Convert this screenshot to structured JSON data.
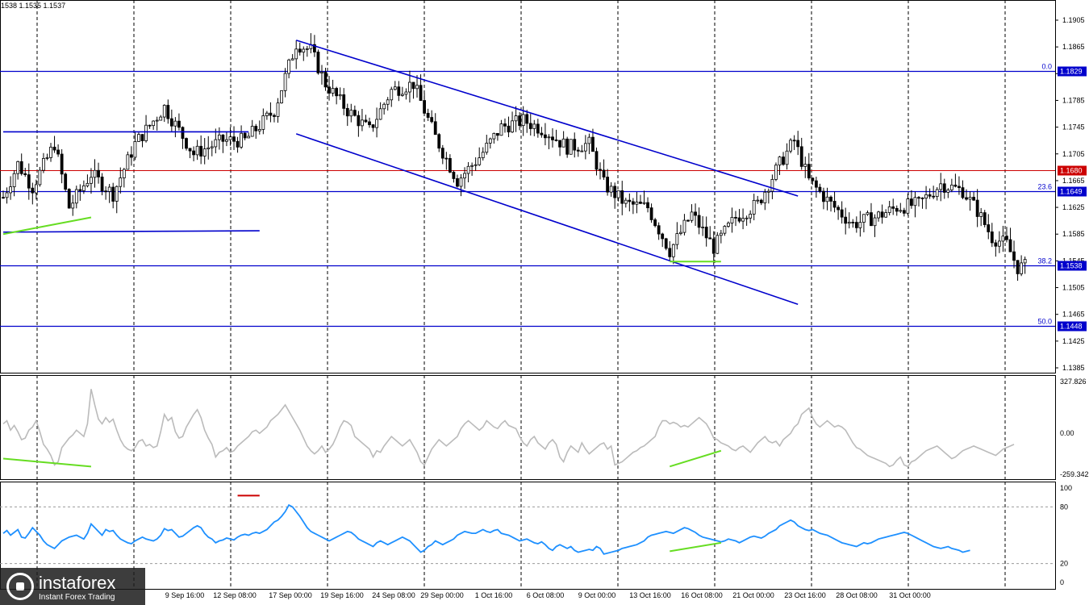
{
  "header": {
    "ohlc_text": "1538 1.1535 1.1537"
  },
  "logo": {
    "name": "instaforex",
    "tagline": "Instant Forex Trading"
  },
  "colors": {
    "candles": "#000000",
    "level_lines": "#0000cc",
    "red_level": "#cc0000",
    "channel": "#0000cc",
    "divergence": "#66dd22",
    "cci": "#bbbbbb",
    "rsi": "#1e90ff",
    "grid": "#000000"
  },
  "chart_data": [
    {
      "type": "candlestick",
      "panel": "price",
      "ylim": [
        1.1385,
        1.1925
      ],
      "y_ticks": [
        "1.1905",
        "1.1865",
        "1.1825",
        "1.1785",
        "1.1745",
        "1.1705",
        "1.1665",
        "1.1625",
        "1.1585",
        "1.1545",
        "1.1505",
        "1.1465",
        "1.1425",
        "1.1385"
      ],
      "x_ticks": [
        "9 Sep 16:00",
        "12 Sep 08:00",
        "17 Sep 00:00",
        "19 Sep 16:00",
        "24 Sep 08:00",
        "29 Sep 00:00",
        "1 Oct 16:00",
        "6 Oct 08:00",
        "9 Oct 00:00",
        "13 Oct 16:00",
        "16 Oct 08:00",
        "21 Oct 00:00",
        "23 Oct 16:00",
        "28 Oct 08:00",
        "31 Oct 00:00"
      ],
      "path_points": [
        {
          "i": 0,
          "price": 1.164
        },
        {
          "i": 4,
          "price": 1.169
        },
        {
          "i": 8,
          "price": 1.1655
        },
        {
          "i": 14,
          "price": 1.172
        },
        {
          "i": 18,
          "price": 1.1625
        },
        {
          "i": 24,
          "price": 1.1675
        },
        {
          "i": 30,
          "price": 1.1645
        },
        {
          "i": 36,
          "price": 1.172
        },
        {
          "i": 44,
          "price": 1.1775
        },
        {
          "i": 52,
          "price": 1.1705
        },
        {
          "i": 60,
          "price": 1.1725
        },
        {
          "i": 66,
          "price": 1.1725
        },
        {
          "i": 74,
          "price": 1.177
        },
        {
          "i": 80,
          "price": 1.187
        },
        {
          "i": 84,
          "price": 1.186
        },
        {
          "i": 88,
          "price": 1.181
        },
        {
          "i": 94,
          "price": 1.177
        },
        {
          "i": 100,
          "price": 1.174
        },
        {
          "i": 106,
          "price": 1.18
        },
        {
          "i": 112,
          "price": 1.181
        },
        {
          "i": 118,
          "price": 1.173
        },
        {
          "i": 124,
          "price": 1.1665
        },
        {
          "i": 130,
          "price": 1.17
        },
        {
          "i": 136,
          "price": 1.1745
        },
        {
          "i": 142,
          "price": 1.1755
        },
        {
          "i": 148,
          "price": 1.174
        },
        {
          "i": 154,
          "price": 1.1715
        },
        {
          "i": 160,
          "price": 1.172
        },
        {
          "i": 164,
          "price": 1.166
        },
        {
          "i": 170,
          "price": 1.163
        },
        {
          "i": 176,
          "price": 1.1625
        },
        {
          "i": 182,
          "price": 1.156
        },
        {
          "i": 188,
          "price": 1.1615
        },
        {
          "i": 194,
          "price": 1.1565
        },
        {
          "i": 200,
          "price": 1.161
        },
        {
          "i": 206,
          "price": 1.163
        },
        {
          "i": 212,
          "price": 1.169
        },
        {
          "i": 216,
          "price": 1.1725
        },
        {
          "i": 220,
          "price": 1.1665
        },
        {
          "i": 226,
          "price": 1.163
        },
        {
          "i": 232,
          "price": 1.16
        },
        {
          "i": 238,
          "price": 1.161
        },
        {
          "i": 244,
          "price": 1.1625
        },
        {
          "i": 250,
          "price": 1.163
        },
        {
          "i": 256,
          "price": 1.166
        },
        {
          "i": 262,
          "price": 1.165
        },
        {
          "i": 266,
          "price": 1.162
        },
        {
          "i": 270,
          "price": 1.158
        },
        {
          "i": 274,
          "price": 1.157
        },
        {
          "i": 277,
          "price": 1.1535
        },
        {
          "i": 279,
          "price": 1.1537
        }
      ],
      "horizontal_levels": [
        {
          "price": 1.1829,
          "tag": "1.1829",
          "fib": "0.0",
          "color": "blue"
        },
        {
          "price": 1.168,
          "tag": "1.1680",
          "fib": "",
          "color": "red"
        },
        {
          "price": 1.1649,
          "tag": "1.1649",
          "fib": "23.6",
          "color": "blue"
        },
        {
          "price": 1.1538,
          "tag": "1.1538",
          "fib": "38.2",
          "color": "blue"
        },
        {
          "price": 1.1448,
          "tag": "1.1448",
          "fib": "50.0",
          "color": "blue"
        }
      ],
      "trend_lines": [
        {
          "kind": "channel-upper",
          "from": {
            "i": 80,
            "price": 1.1875
          },
          "to": {
            "i": 217,
            "price": 1.1642
          }
        },
        {
          "kind": "channel-lower",
          "from": {
            "i": 80,
            "price": 1.1735
          },
          "to": {
            "i": 217,
            "price": 1.148
          }
        },
        {
          "kind": "support-short",
          "from": {
            "i": 0,
            "price": 1.1738
          },
          "to": {
            "i": 67,
            "price": 1.1738
          }
        },
        {
          "kind": "support-short",
          "from": {
            "i": 0,
            "price": 1.1588
          },
          "to": {
            "i": 70,
            "price": 1.159
          }
        }
      ],
      "divergence_lines": [
        {
          "from": {
            "i": 0,
            "price": 1.1585
          },
          "to": {
            "i": 24,
            "price": 1.161
          }
        },
        {
          "from": {
            "i": 182,
            "price": 1.1544
          },
          "to": {
            "i": 196,
            "price": 1.1544
          }
        }
      ]
    },
    {
      "type": "line",
      "panel": "CCI",
      "ylim": [
        -259.342,
        327.826
      ],
      "y_ticks": [
        "327.826",
        "0.00",
        "-259.342"
      ],
      "series": [
        {
          "values": [
            60,
            80,
            20,
            50,
            10,
            -40,
            -30,
            20,
            40,
            80,
            10,
            -70,
            -100,
            -140,
            -200,
            -180,
            -90,
            -60,
            -30,
            -10,
            20,
            0,
            -20,
            60,
            280,
            180,
            90,
            60,
            100,
            70,
            90,
            20,
            -40,
            -80,
            -100,
            -110,
            -90,
            -50,
            -40,
            -80,
            -70,
            -90,
            -80,
            10,
            120,
            80,
            100,
            10,
            -30,
            -20,
            40,
            80,
            120,
            150,
            100,
            20,
            -30,
            -70,
            -150,
            -120,
            -110,
            -90,
            -120,
            -110,
            -80,
            -60,
            -40,
            -20,
            10,
            20,
            0,
            20,
            40,
            80,
            100,
            120,
            150,
            180,
            140,
            100,
            60,
            20,
            -30,
            -80,
            -110,
            -130,
            -110,
            -80,
            -120,
            -100,
            -70,
            -20,
            40,
            80,
            70,
            50,
            -20,
            -40,
            -60,
            -80,
            -100,
            -150,
            -110,
            -120,
            -80,
            -50,
            -20,
            -40,
            -60,
            -80,
            -60,
            -40,
            -80,
            -120,
            -180,
            -200,
            -150,
            -100,
            -70,
            -40,
            -60,
            -80,
            -60,
            -40,
            -20,
            30,
            60,
            80,
            60,
            40,
            20,
            40,
            80,
            60,
            40,
            30,
            60,
            80,
            50,
            40,
            30,
            -20,
            -60,
            -80,
            -40,
            -20,
            -60,
            -80,
            -100,
            -60,
            -40,
            -70,
            -150,
            -180,
            -120,
            -80,
            -100,
            -120,
            -60,
            -100,
            -130,
            -110,
            -90,
            -70,
            -60,
            -100,
            -80,
            -200,
            -190,
            -180,
            -160,
            -140,
            -120,
            -110,
            -90,
            -80,
            -60,
            -40,
            -20,
            40,
            80,
            80,
            60,
            70,
            60,
            40,
            50,
            40,
            60,
            80,
            100,
            80,
            60,
            20,
            -30,
            -40,
            -60,
            -70,
            -80,
            -100,
            -110,
            -90,
            -80,
            -100,
            -120,
            -90,
            -60,
            -40,
            -20,
            -50,
            -60,
            -50,
            -80,
            -40,
            -20,
            0,
            40,
            60,
            120,
            140,
            160,
            100,
            60,
            40,
            60,
            80,
            60,
            40,
            50,
            40,
            20,
            -20,
            -60,
            -90,
            -100,
            -120,
            -140,
            -150,
            -160,
            -170,
            -180,
            -190,
            -210,
            -200,
            -170,
            -150,
            -200,
            -210,
            -180,
            -170,
            -150,
            -130,
            -110,
            -100,
            -90,
            -80,
            -100,
            -120,
            -140,
            -160,
            -150,
            -130,
            -110,
            -100,
            -90,
            -80,
            -90,
            -100,
            -110,
            -120,
            -130,
            -140,
            -120,
            -100,
            -90,
            -80,
            -70
          ]
        }
      ],
      "divergence_lines": [
        {
          "from": {
            "i": 0,
            "value": -160
          },
          "to": {
            "i": 24,
            "value": -210
          }
        },
        {
          "from": {
            "i": 182,
            "value": -210
          },
          "to": {
            "i": 196,
            "value": -110
          }
        }
      ]
    },
    {
      "type": "line",
      "panel": "RSI",
      "ylim": [
        0,
        100
      ],
      "y_ticks": [
        "100",
        "80",
        "20",
        "0"
      ],
      "levels": [
        80,
        20
      ],
      "series": [
        {
          "values": [
            52,
            55,
            50,
            53,
            56,
            48,
            47,
            52,
            58,
            54,
            50,
            44,
            40,
            38,
            36,
            40,
            44,
            46,
            48,
            49,
            50,
            48,
            46,
            52,
            62,
            58,
            54,
            50,
            56,
            54,
            55,
            50,
            46,
            44,
            42,
            41,
            44,
            46,
            48,
            46,
            45,
            44,
            46,
            50,
            57,
            55,
            56,
            52,
            48,
            49,
            52,
            55,
            58,
            60,
            58,
            52,
            48,
            46,
            42,
            44,
            45,
            47,
            46,
            45,
            48,
            50,
            51,
            50,
            52,
            53,
            52,
            54,
            56,
            60,
            64,
            66,
            70,
            75,
            82,
            80,
            75,
            70,
            64,
            58,
            54,
            52,
            50,
            48,
            46,
            44,
            46,
            48,
            50,
            52,
            54,
            53,
            50,
            46,
            44,
            42,
            40,
            38,
            42,
            44,
            42,
            40,
            42,
            44,
            46,
            48,
            46,
            44,
            40,
            36,
            32,
            34,
            38,
            40,
            44,
            42,
            40,
            42,
            44,
            46,
            50,
            52,
            54,
            53,
            52,
            52,
            54,
            56,
            54,
            53,
            55,
            56,
            52,
            51,
            50,
            48,
            46,
            44,
            45,
            46,
            44,
            42,
            41,
            43,
            40,
            36,
            34,
            38,
            40,
            38,
            36,
            38,
            34,
            32,
            33,
            34,
            35,
            34,
            38,
            36,
            30,
            31,
            32,
            33,
            34,
            36,
            37,
            38,
            39,
            40,
            42,
            44,
            48,
            50,
            51,
            52,
            53,
            54,
            53,
            52,
            54,
            56,
            58,
            57,
            55,
            53,
            50,
            48,
            47,
            46,
            45,
            44,
            43,
            44,
            46,
            45,
            44,
            42,
            44,
            46,
            48,
            49,
            48,
            47,
            49,
            52,
            54,
            56,
            60,
            62,
            64,
            66,
            64,
            60,
            58,
            56,
            55,
            56,
            54,
            52,
            51,
            50,
            48,
            46,
            44,
            42,
            41,
            40,
            39,
            38,
            40,
            42,
            41,
            42,
            44,
            46,
            47,
            48,
            49,
            50,
            51,
            52,
            53,
            52,
            50,
            48,
            46,
            44,
            42,
            40,
            38,
            37,
            36,
            37,
            38,
            36,
            35,
            34,
            32,
            33,
            34
          ]
        }
      ],
      "annotation_lines": [
        {
          "color": "red",
          "from": {
            "i": 64,
            "value": 92
          },
          "to": {
            "i": 70,
            "value": 92
          }
        }
      ],
      "divergence_lines": [
        {
          "from": {
            "i": 182,
            "value": 33
          },
          "to": {
            "i": 196,
            "value": 42
          }
        }
      ]
    }
  ]
}
